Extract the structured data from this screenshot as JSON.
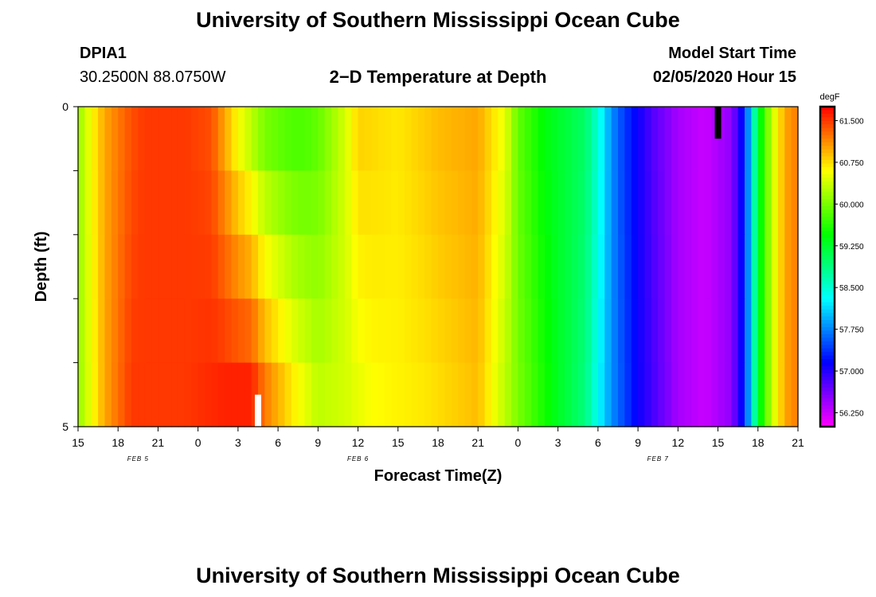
{
  "header": {
    "title": "University of Southern Mississippi Ocean Cube",
    "station_id": "DPIA1",
    "coords": "30.2500N 88.0750W",
    "plot_title": "2−D Temperature at Depth",
    "model_label": "Model Start Time",
    "model_time": "02/05/2020 Hour 15"
  },
  "footer": {
    "title": "University of Southern Mississippi Ocean Cube"
  },
  "chart_data": {
    "type": "heatmap",
    "title": "2−D Temperature at Depth",
    "xlabel": "Forecast Time(Z)",
    "ylabel": "Depth (ft)",
    "x_range_hours": [
      0,
      54
    ],
    "y_range_ft": [
      0,
      5
    ],
    "x_tick_labels": [
      "15",
      "18",
      "21",
      "0",
      "3",
      "6",
      "9",
      "12",
      "15",
      "18",
      "21",
      "0",
      "3",
      "6",
      "9",
      "12",
      "15",
      "18",
      "21"
    ],
    "y_tick_labels": [
      "0",
      "5"
    ],
    "date_labels": [
      {
        "text": "FEB 5",
        "hour": 4.5
      },
      {
        "text": "FEB 6",
        "hour": 21
      },
      {
        "text": "FEB 7",
        "hour": 43.5
      }
    ],
    "colorbar": {
      "unit": "degF",
      "min": 56.0,
      "max": 61.75,
      "tick_labels": [
        "61.500",
        "60.750",
        "60.000",
        "59.250",
        "58.500",
        "57.750",
        "57.000",
        "56.250"
      ],
      "tick_values": [
        61.5,
        60.75,
        60.0,
        59.25,
        58.5,
        57.75,
        57.0,
        56.25
      ]
    },
    "depth_levels_ft": [
      0,
      1,
      2,
      3,
      4,
      5
    ],
    "surface_temperature_profile": [
      {
        "hour": 0,
        "value": 60.1
      },
      {
        "hour": 1,
        "value": 60.6
      },
      {
        "hour": 2,
        "value": 61.0
      },
      {
        "hour": 3,
        "value": 61.2
      },
      {
        "hour": 4,
        "value": 61.4
      },
      {
        "hour": 5,
        "value": 61.5
      },
      {
        "hour": 6,
        "value": 61.5
      },
      {
        "hour": 8,
        "value": 61.5
      },
      {
        "hour": 10,
        "value": 61.4
      },
      {
        "hour": 11,
        "value": 61.0
      },
      {
        "hour": 12,
        "value": 60.6
      },
      {
        "hour": 13,
        "value": 60.3
      },
      {
        "hour": 14,
        "value": 60.0
      },
      {
        "hour": 15,
        "value": 59.9
      },
      {
        "hour": 16,
        "value": 59.8
      },
      {
        "hour": 17,
        "value": 59.8
      },
      {
        "hour": 18,
        "value": 59.9
      },
      {
        "hour": 20,
        "value": 60.4
      },
      {
        "hour": 21,
        "value": 60.8
      },
      {
        "hour": 24,
        "value": 60.7
      },
      {
        "hour": 27,
        "value": 60.9
      },
      {
        "hour": 30,
        "value": 61.0
      },
      {
        "hour": 32,
        "value": 60.5
      },
      {
        "hour": 33,
        "value": 59.9
      },
      {
        "hour": 35,
        "value": 59.4
      },
      {
        "hour": 38,
        "value": 59.0
      },
      {
        "hour": 39,
        "value": 58.5
      },
      {
        "hour": 40,
        "value": 57.8
      },
      {
        "hour": 41,
        "value": 57.4
      },
      {
        "hour": 42,
        "value": 57.1
      },
      {
        "hour": 43,
        "value": 56.8
      },
      {
        "hour": 45,
        "value": 56.4
      },
      {
        "hour": 47,
        "value": 56.25
      },
      {
        "hour": 49,
        "value": 56.5
      },
      {
        "hour": 50,
        "value": 57.3
      },
      {
        "hour": 51,
        "value": 59.2
      },
      {
        "hour": 52,
        "value": 60.3
      },
      {
        "hour": 53,
        "value": 61.0
      },
      {
        "hour": 54,
        "value": 61.2
      }
    ],
    "bottom_temperature_profile": [
      {
        "hour": 0,
        "value": 60.1
      },
      {
        "hour": 2,
        "value": 61.0
      },
      {
        "hour": 4,
        "value": 61.5
      },
      {
        "hour": 8,
        "value": 61.5
      },
      {
        "hour": 11,
        "value": 61.6
      },
      {
        "hour": 13,
        "value": 61.6
      },
      {
        "hour": 14,
        "value": 61.2
      },
      {
        "hour": 16,
        "value": 60.7
      },
      {
        "hour": 18,
        "value": 60.3
      },
      {
        "hour": 20,
        "value": 60.4
      },
      {
        "hour": 22,
        "value": 60.6
      },
      {
        "hour": 26,
        "value": 60.7
      },
      {
        "hour": 30,
        "value": 60.9
      },
      {
        "hour": 33,
        "value": 60.0
      },
      {
        "hour": 36,
        "value": 59.3
      },
      {
        "hour": 38,
        "value": 58.9
      },
      {
        "hour": 40,
        "value": 57.8
      },
      {
        "hour": 42,
        "value": 57.1
      },
      {
        "hour": 45,
        "value": 56.4
      },
      {
        "hour": 47,
        "value": 56.25
      },
      {
        "hour": 49,
        "value": 56.5
      },
      {
        "hour": 50,
        "value": 57.3
      },
      {
        "hour": 51,
        "value": 59.2
      },
      {
        "hour": 52,
        "value": 60.3
      },
      {
        "hour": 53,
        "value": 61.0
      },
      {
        "hour": 54,
        "value": 61.2
      }
    ],
    "markers": [
      {
        "type": "bar",
        "color": "#000000",
        "hour": 48.0,
        "depth_from_ft": 0,
        "depth_to_ft": 0.5
      },
      {
        "type": "bar",
        "color": "#ffffff",
        "hour": 13.5,
        "depth_from_ft": 4.5,
        "depth_to_ft": 5.0
      }
    ]
  }
}
